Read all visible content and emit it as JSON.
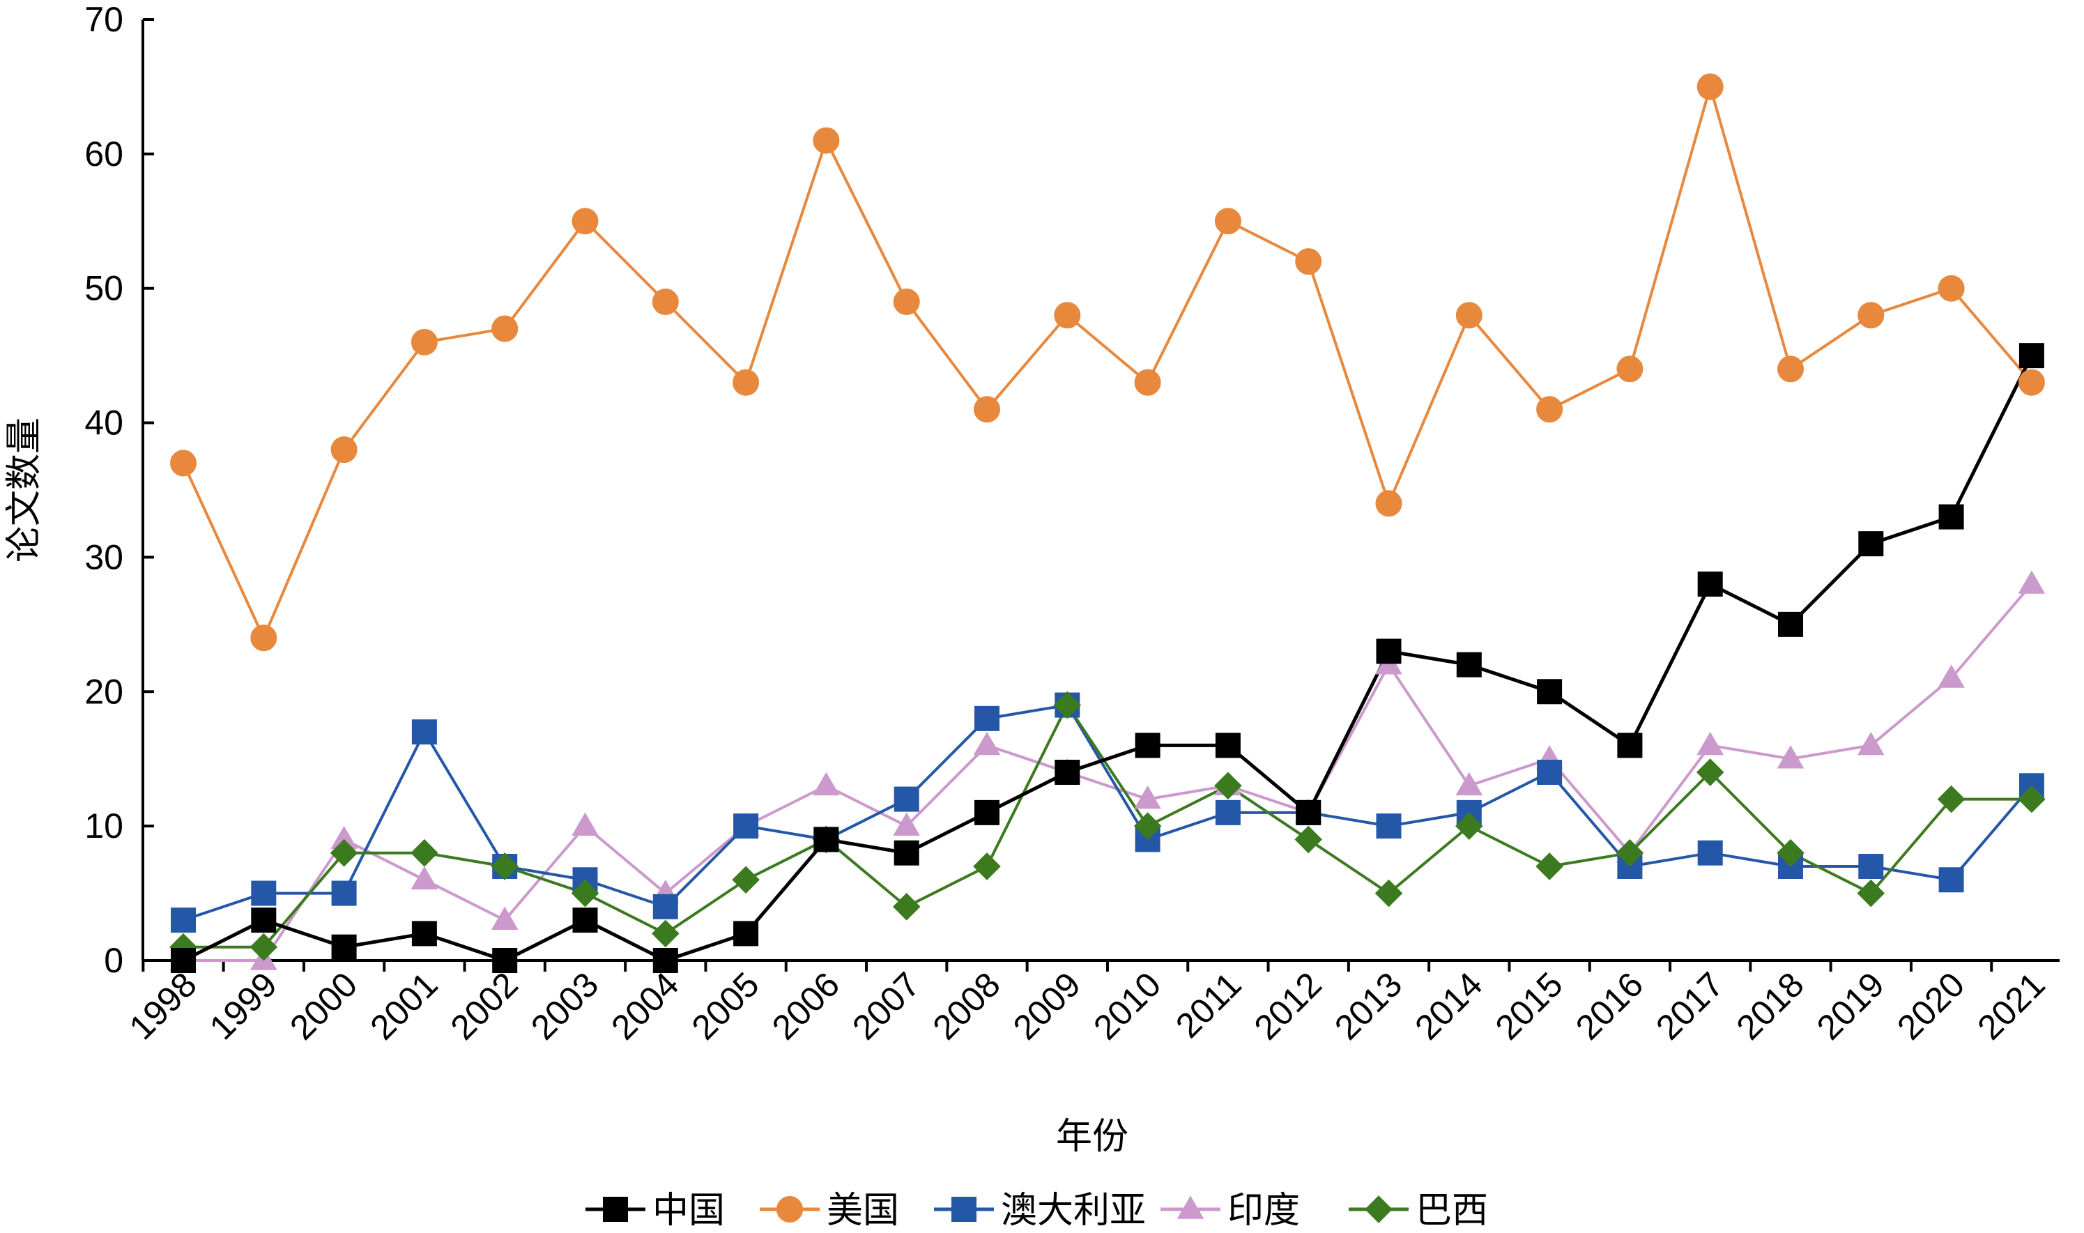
{
  "chart_data": {
    "type": "line",
    "title": "",
    "xlabel": "年份",
    "ylabel": "论文数量",
    "ylim": [
      0,
      70
    ],
    "y_ticks": [
      0,
      10,
      20,
      30,
      40,
      50,
      60,
      70
    ],
    "x_tick_labels": [
      "1998",
      "1999",
      "2000",
      "2001",
      "2002",
      "2003",
      "2004",
      "2005",
      "2006",
      "2007",
      "2008",
      "2009",
      "2010",
      "2011",
      "2012",
      "2013",
      "2014",
      "2015",
      "2016",
      "2017",
      "2018",
      "2019",
      "2020",
      "2021"
    ],
    "grid": false,
    "legend_placement": "bottom",
    "series": [
      {
        "name": "中国",
        "color": "#000000",
        "marker": "square",
        "values": [
          0,
          3,
          1,
          2,
          0,
          3,
          0,
          2,
          9,
          8,
          11,
          14,
          16,
          16,
          11,
          23,
          22,
          20,
          16,
          28,
          25,
          31,
          33,
          45
        ]
      },
      {
        "name": "美国",
        "color": "#E7883D",
        "marker": "circle",
        "values": [
          37,
          24,
          38,
          46,
          47,
          55,
          49,
          43,
          61,
          49,
          41,
          48,
          43,
          55,
          52,
          34,
          48,
          41,
          44,
          65,
          44,
          48,
          50,
          43
        ]
      },
      {
        "name": "澳大利亚",
        "color": "#2457A8",
        "marker": "square",
        "values": [
          3,
          5,
          5,
          17,
          7,
          6,
          4,
          10,
          9,
          12,
          18,
          19,
          9,
          11,
          11,
          10,
          11,
          14,
          7,
          8,
          7,
          7,
          6,
          13
        ]
      },
      {
        "name": "印度",
        "color": "#CC99CC",
        "marker": "triangle",
        "values": [
          0,
          0,
          9,
          6,
          3,
          10,
          5,
          10,
          13,
          10,
          16,
          14,
          12,
          13,
          11,
          22,
          13,
          15,
          8,
          16,
          15,
          16,
          21,
          28
        ]
      },
      {
        "name": "巴西",
        "color": "#3C7A1F",
        "marker": "diamond",
        "values": [
          1,
          1,
          8,
          8,
          7,
          5,
          2,
          6,
          9,
          4,
          7,
          19,
          10,
          13,
          9,
          5,
          10,
          7,
          8,
          14,
          8,
          5,
          12,
          12
        ]
      }
    ]
  }
}
